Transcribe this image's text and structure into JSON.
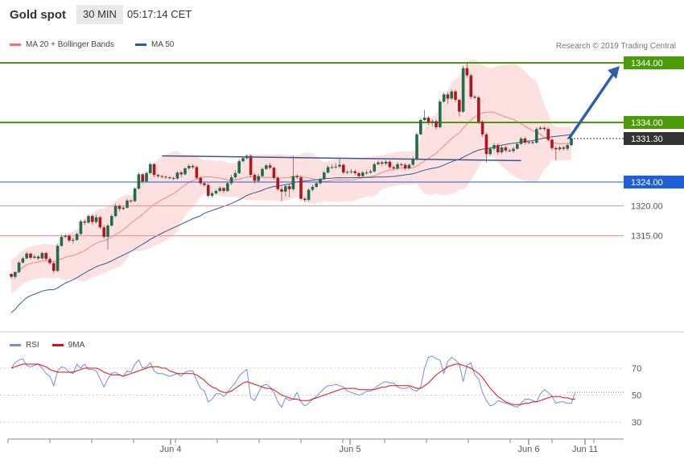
{
  "header": {
    "title": "Gold spot",
    "timeframe": "30 MIN",
    "time": "05:17:14 CET"
  },
  "legend": {
    "ma20_label": "MA 20 + Bollinger Bands",
    "ma50_label": "MA 50",
    "copyright": "Research © 2019 Trading Central"
  },
  "rsi_legend": {
    "rsi_label": "RSI",
    "ma9_label": "9MA"
  },
  "colors": {
    "green_level": "#4a9a0a",
    "blue_level": "#1f5fd6",
    "red_level": "#f08a8a",
    "current_price": "#333333",
    "candle_up": "#1e6e4a",
    "candle_down": "#b0161b",
    "ma50": "#2f5b9a",
    "ma20": "#f07070",
    "band_fill": "#fde0e0",
    "rsi_line": "#6f8fe0",
    "rsi_ma": "#e01010",
    "arrow": "#2f5fa8"
  },
  "chart_data": {
    "type": "candlestick",
    "title": "Gold spot",
    "price_labels": [
      "1344.00",
      "1334.00",
      "1331.30",
      "1324.00",
      "1320.00",
      "1315.00"
    ],
    "levels": [
      {
        "value": 1344.0,
        "label": "1344.00",
        "kind": "resistance"
      },
      {
        "value": 1334.0,
        "label": "1334.00",
        "kind": "resistance"
      },
      {
        "value": 1331.3,
        "label": "1331.30",
        "kind": "current"
      },
      {
        "value": 1324.0,
        "label": "1324.00",
        "kind": "pivot"
      },
      {
        "value": 1320.0,
        "label": "1320.00",
        "kind": "support"
      },
      {
        "value": 1315.0,
        "label": "1315.00",
        "kind": "support"
      }
    ],
    "x_ticks": [
      "Jun 4",
      "Jun 5",
      "Jun 6",
      "Jun 11"
    ],
    "candles": [
      [
        1308.6,
        1308.1,
        1307.8,
        1308.7
      ],
      [
        1308.1,
        1308.9,
        1307.8,
        1309.0
      ],
      [
        1308.9,
        1310.5,
        1308.7,
        1310.7
      ],
      [
        1310.5,
        1311.2,
        1310.3,
        1311.5
      ],
      [
        1311.2,
        1312.0,
        1311.0,
        1312.3
      ],
      [
        1312.0,
        1311.3,
        1311.0,
        1312.2
      ],
      [
        1311.3,
        1311.5,
        1311.1,
        1311.9
      ],
      [
        1311.5,
        1311.2,
        1310.9,
        1311.7
      ],
      [
        1311.2,
        1312.1,
        1311.0,
        1312.3
      ],
      [
        1312.1,
        1311.1,
        1310.8,
        1312.3
      ],
      [
        1311.1,
        1310.4,
        1310.1,
        1311.4
      ],
      [
        1310.4,
        1309.1,
        1308.7,
        1310.7
      ],
      [
        1309.1,
        1313.3,
        1308.9,
        1313.6
      ],
      [
        1313.3,
        1314.8,
        1313.1,
        1315.2
      ],
      [
        1314.8,
        1315.0,
        1314.6,
        1315.3
      ],
      [
        1315.0,
        1314.2,
        1313.9,
        1315.3
      ],
      [
        1314.2,
        1314.3,
        1313.7,
        1314.7
      ],
      [
        1314.3,
        1315.3,
        1314.1,
        1315.5
      ],
      [
        1315.3,
        1317.4,
        1315.1,
        1317.7
      ],
      [
        1317.4,
        1317.2,
        1316.8,
        1317.8
      ],
      [
        1317.2,
        1318.3,
        1317.0,
        1318.6
      ],
      [
        1318.3,
        1317.3,
        1316.8,
        1318.6
      ],
      [
        1317.3,
        1318.1,
        1317.0,
        1318.5
      ],
      [
        1318.1,
        1316.4,
        1316.1,
        1318.3
      ],
      [
        1316.4,
        1314.8,
        1314.5,
        1316.8
      ],
      [
        1314.8,
        1316.7,
        1312.7,
        1317.0
      ],
      [
        1316.7,
        1318.3,
        1316.5,
        1318.6
      ],
      [
        1318.3,
        1320.0,
        1318.1,
        1320.4
      ],
      [
        1320.0,
        1319.5,
        1319.1,
        1320.3
      ],
      [
        1319.5,
        1319.7,
        1319.3,
        1320.0
      ],
      [
        1319.7,
        1320.9,
        1319.5,
        1321.2
      ],
      [
        1320.9,
        1320.8,
        1320.5,
        1321.1
      ],
      [
        1320.8,
        1322.9,
        1320.6,
        1323.1
      ],
      [
        1322.9,
        1325.3,
        1322.7,
        1325.6
      ],
      [
        1325.3,
        1324.1,
        1323.8,
        1325.5
      ],
      [
        1324.1,
        1325.5,
        1323.9,
        1325.8
      ],
      [
        1325.5,
        1327.0,
        1325.3,
        1327.3
      ],
      [
        1327.0,
        1325.2,
        1324.8,
        1327.2
      ],
      [
        1325.2,
        1325.0,
        1324.7,
        1325.4
      ],
      [
        1325.0,
        1324.9,
        1324.6,
        1325.2
      ],
      [
        1324.9,
        1324.8,
        1324.5,
        1325.1
      ],
      [
        1324.8,
        1324.7,
        1324.4,
        1325.0
      ],
      [
        1324.7,
        1324.6,
        1324.3,
        1324.9
      ],
      [
        1324.6,
        1325.6,
        1324.4,
        1325.8
      ],
      [
        1325.6,
        1325.3,
        1324.8,
        1325.9
      ],
      [
        1325.3,
        1326.3,
        1325.1,
        1326.5
      ],
      [
        1326.3,
        1326.7,
        1326.0,
        1327.0
      ],
      [
        1326.7,
        1326.5,
        1326.2,
        1327.0
      ],
      [
        1326.5,
        1324.7,
        1324.4,
        1326.8
      ],
      [
        1324.7,
        1323.8,
        1323.5,
        1325.0
      ],
      [
        1323.8,
        1323.5,
        1323.2,
        1324.0
      ],
      [
        1323.5,
        1321.7,
        1321.4,
        1323.8
      ],
      [
        1321.7,
        1322.1,
        1321.4,
        1322.4
      ],
      [
        1322.1,
        1322.5,
        1321.9,
        1322.8
      ],
      [
        1322.5,
        1323.0,
        1322.3,
        1323.3
      ],
      [
        1323.0,
        1322.5,
        1322.2,
        1323.2
      ],
      [
        1322.5,
        1323.8,
        1322.3,
        1324.1
      ],
      [
        1323.8,
        1324.8,
        1323.5,
        1325.2
      ],
      [
        1324.8,
        1325.5,
        1324.5,
        1326.0
      ],
      [
        1325.5,
        1327.5,
        1325.3,
        1327.8
      ],
      [
        1327.5,
        1328.0,
        1327.3,
        1328.3
      ],
      [
        1328.0,
        1328.4,
        1327.8,
        1328.6
      ],
      [
        1328.4,
        1325.2,
        1324.8,
        1328.6
      ],
      [
        1325.2,
        1324.2,
        1323.8,
        1325.5
      ],
      [
        1324.2,
        1325.0,
        1323.9,
        1325.4
      ],
      [
        1325.0,
        1326.2,
        1324.8,
        1326.5
      ],
      [
        1326.2,
        1326.8,
        1326.0,
        1327.0
      ],
      [
        1326.8,
        1326.4,
        1326.1,
        1327.2
      ],
      [
        1326.4,
        1324.7,
        1324.3,
        1326.6
      ],
      [
        1324.7,
        1322.8,
        1322.5,
        1325.0
      ],
      [
        1322.8,
        1322.4,
        1320.8,
        1323.2
      ],
      [
        1322.4,
        1323.3,
        1321.6,
        1323.6
      ],
      [
        1323.3,
        1322.8,
        1321.5,
        1323.6
      ],
      [
        1322.8,
        1325.0,
        1322.5,
        1328.4
      ],
      [
        1325.0,
        1324.8,
        1324.5,
        1325.3
      ],
      [
        1324.8,
        1321.2,
        1320.9,
        1325.1
      ],
      [
        1321.2,
        1321.0,
        1320.6,
        1321.5
      ],
      [
        1321.0,
        1322.7,
        1320.8,
        1323.0
      ],
      [
        1322.7,
        1323.2,
        1322.4,
        1323.6
      ],
      [
        1323.2,
        1323.8,
        1323.0,
        1324.1
      ],
      [
        1323.8,
        1324.5,
        1323.6,
        1324.8
      ],
      [
        1324.5,
        1325.6,
        1324.3,
        1325.9
      ],
      [
        1325.6,
        1326.5,
        1325.4,
        1326.8
      ],
      [
        1326.5,
        1326.5,
        1326.2,
        1327.0
      ],
      [
        1326.5,
        1326.6,
        1326.2,
        1327.2
      ],
      [
        1326.6,
        1326.9,
        1326.3,
        1328.0
      ],
      [
        1326.9,
        1325.6,
        1325.3,
        1327.1
      ],
      [
        1325.6,
        1325.7,
        1325.3,
        1326.0
      ],
      [
        1325.7,
        1325.8,
        1325.4,
        1326.2
      ],
      [
        1325.8,
        1325.5,
        1325.1,
        1326.1
      ],
      [
        1325.5,
        1325.0,
        1324.8,
        1325.7
      ],
      [
        1325.0,
        1325.6,
        1324.8,
        1325.9
      ],
      [
        1325.6,
        1325.6,
        1325.2,
        1326.0
      ],
      [
        1325.6,
        1325.8,
        1325.4,
        1326.1
      ],
      [
        1325.8,
        1327.0,
        1325.6,
        1327.3
      ],
      [
        1327.0,
        1327.3,
        1326.8,
        1327.6
      ],
      [
        1327.3,
        1327.1,
        1326.7,
        1327.6
      ],
      [
        1327.1,
        1327.4,
        1326.8,
        1327.7
      ],
      [
        1327.4,
        1326.5,
        1326.2,
        1327.7
      ],
      [
        1326.5,
        1326.3,
        1326.0,
        1326.8
      ],
      [
        1326.3,
        1327.0,
        1326.0,
        1327.3
      ],
      [
        1327.0,
        1326.9,
        1326.5,
        1327.2
      ],
      [
        1326.9,
        1326.3,
        1326.0,
        1327.2
      ],
      [
        1326.3,
        1326.9,
        1326.1,
        1327.1
      ],
      [
        1326.9,
        1327.8,
        1326.7,
        1328.2
      ],
      [
        1327.8,
        1332.0,
        1327.6,
        1332.3
      ],
      [
        1332.0,
        1334.4,
        1331.8,
        1334.7
      ],
      [
        1334.4,
        1334.8,
        1334.2,
        1336.1
      ],
      [
        1334.8,
        1334.0,
        1333.6,
        1335.1
      ],
      [
        1334.0,
        1334.2,
        1333.4,
        1334.5
      ],
      [
        1334.2,
        1333.2,
        1332.8,
        1334.5
      ],
      [
        1333.2,
        1337.5,
        1333.0,
        1337.9
      ],
      [
        1337.5,
        1338.7,
        1337.3,
        1339.0
      ],
      [
        1338.7,
        1338.0,
        1337.1,
        1339.1
      ],
      [
        1338.0,
        1339.2,
        1337.8,
        1339.5
      ],
      [
        1339.2,
        1337.8,
        1337.4,
        1339.5
      ],
      [
        1337.8,
        1335.8,
        1335.0,
        1338.0
      ],
      [
        1335.8,
        1343.1,
        1335.6,
        1343.5
      ],
      [
        1343.1,
        1341.9,
        1341.5,
        1344.0
      ],
      [
        1341.9,
        1338.3,
        1337.9,
        1342.2
      ],
      [
        1338.3,
        1338.2,
        1337.9,
        1338.6
      ],
      [
        1338.2,
        1334.1,
        1333.7,
        1338.5
      ],
      [
        1334.1,
        1332.0,
        1331.6,
        1334.4
      ],
      [
        1332.0,
        1328.7,
        1327.3,
        1332.3
      ],
      [
        1328.7,
        1329.6,
        1328.4,
        1329.9
      ],
      [
        1329.6,
        1330.2,
        1329.3,
        1330.5
      ],
      [
        1330.2,
        1329.0,
        1328.6,
        1330.5
      ],
      [
        1329.0,
        1329.8,
        1328.7,
        1330.2
      ],
      [
        1329.8,
        1329.3,
        1329.0,
        1330.1
      ],
      [
        1329.3,
        1329.2,
        1329.0,
        1329.6
      ],
      [
        1329.2,
        1329.6,
        1328.9,
        1329.9
      ],
      [
        1329.6,
        1330.4,
        1329.4,
        1330.7
      ],
      [
        1330.4,
        1331.3,
        1330.2,
        1331.6
      ],
      [
        1331.3,
        1330.6,
        1330.3,
        1331.6
      ],
      [
        1330.6,
        1330.7,
        1330.3,
        1331.0
      ],
      [
        1330.7,
        1330.6,
        1330.3,
        1330.9
      ],
      [
        1330.6,
        1332.9,
        1330.4,
        1333.2
      ],
      [
        1332.9,
        1333.1,
        1332.7,
        1333.4
      ],
      [
        1333.1,
        1332.9,
        1332.6,
        1333.3
      ],
      [
        1332.9,
        1331.1,
        1330.8,
        1333.2
      ],
      [
        1331.1,
        1329.7,
        1329.3,
        1331.4
      ],
      [
        1329.7,
        1329.5,
        1327.6,
        1330.0
      ],
      [
        1329.5,
        1329.8,
        1329.2,
        1330.1
      ],
      [
        1329.8,
        1329.6,
        1329.3,
        1330.1
      ],
      [
        1329.6,
        1330.2,
        1329.3,
        1330.5
      ],
      [
        1330.2,
        1331.3,
        1330.0,
        1331.6
      ]
    ],
    "trend_line": {
      "from": [
        1328.4,
        39
      ],
      "to": [
        1327.6,
        132
      ]
    },
    "projection_arrow": {
      "from": [
        1331.3,
        133
      ],
      "to": [
        1344.0,
        147
      ]
    },
    "rsi": {
      "name": "RSI",
      "ma_name": "9MA",
      "ylim": [
        20,
        90
      ],
      "ticks": [
        70,
        50,
        30
      ],
      "values": [
        70,
        74,
        76,
        77,
        72,
        71,
        72,
        73,
        70,
        66,
        64,
        57,
        68,
        71,
        70,
        67,
        66,
        73,
        70,
        73,
        69,
        69,
        68,
        62,
        56,
        62,
        66,
        67,
        65,
        64,
        68,
        67,
        73,
        76,
        70,
        71,
        74,
        68,
        66,
        66,
        65,
        64,
        65,
        66,
        64,
        67,
        68,
        68,
        61,
        55,
        53,
        45,
        47,
        51,
        51,
        49,
        52,
        56,
        59,
        64,
        67,
        69,
        48,
        46,
        52,
        57,
        58,
        56,
        52,
        45,
        41,
        48,
        46,
        47,
        52,
        45,
        42,
        44,
        47,
        49,
        52,
        55,
        57,
        57,
        58,
        57,
        56,
        53,
        52,
        51,
        50,
        51,
        53,
        53,
        55,
        57,
        59,
        60,
        59,
        59,
        56,
        55,
        55,
        56,
        54,
        53,
        56,
        70,
        78,
        79,
        77,
        76,
        66,
        75,
        78,
        76,
        73,
        60,
        72,
        74,
        65,
        62,
        52,
        46,
        42,
        43,
        46,
        45,
        44,
        43,
        42,
        41,
        44,
        47,
        47,
        46,
        45,
        51,
        54,
        52,
        49,
        44,
        45,
        45,
        44,
        44,
        52
      ],
      "ma9": [
        70,
        71,
        72,
        73,
        73,
        73,
        73,
        73,
        72,
        71,
        69,
        68,
        67,
        67,
        67,
        67,
        67,
        68,
        69,
        70,
        70,
        70,
        70,
        69,
        67,
        66,
        65,
        65,
        65,
        64,
        65,
        66,
        67,
        68,
        69,
        70,
        71,
        71,
        71,
        70,
        70,
        68,
        67,
        66,
        66,
        66,
        66,
        66,
        65,
        63,
        61,
        58,
        56,
        55,
        53,
        52,
        52,
        53,
        55,
        57,
        59,
        60,
        59,
        58,
        57,
        56,
        55,
        55,
        54,
        52,
        50,
        49,
        48,
        47,
        47,
        46,
        46,
        46,
        47,
        48,
        49,
        50,
        51,
        52,
        53,
        54,
        55,
        55,
        55,
        55,
        54,
        54,
        54,
        54,
        54,
        55,
        56,
        56,
        57,
        57,
        57,
        57,
        57,
        57,
        56,
        55,
        55,
        57,
        59,
        62,
        65,
        67,
        69,
        71,
        72,
        73,
        73,
        72,
        71,
        70,
        68,
        66,
        63,
        59,
        55,
        52,
        49,
        47,
        45,
        44,
        43,
        43,
        43,
        44,
        44,
        45,
        45,
        46,
        47,
        48,
        49,
        49,
        49,
        48,
        48,
        47,
        47
      ]
    }
  }
}
